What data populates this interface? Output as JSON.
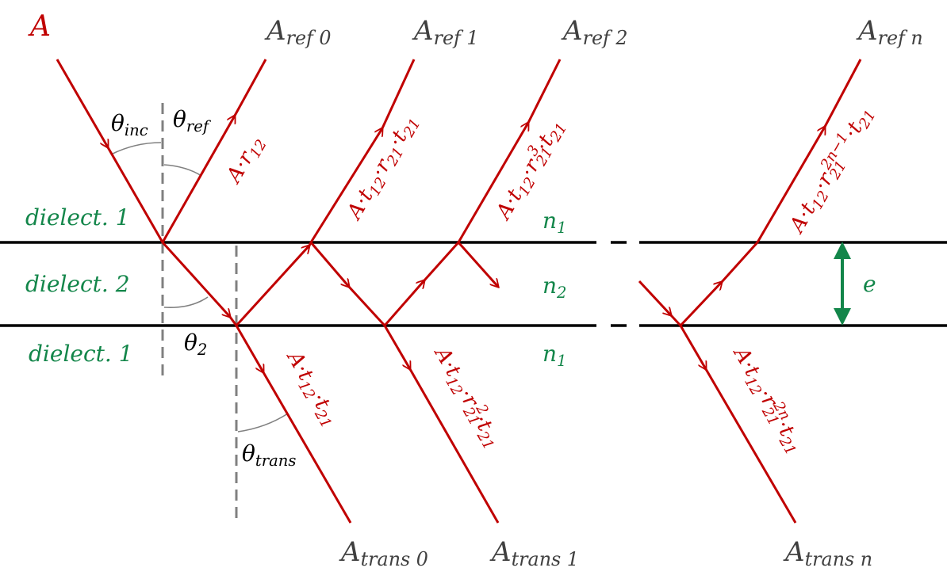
{
  "colors": {
    "ray": "#c00000",
    "interface": "#000000",
    "normal": "#808080",
    "medium": "#13864a",
    "output": "#404040"
  },
  "incident": {
    "label": "A"
  },
  "reflected": [
    {
      "base": "A",
      "sub": "ref 0",
      "coef": "A·r",
      "coef_sub": "12"
    },
    {
      "base": "A",
      "sub": "ref 1",
      "coef": "A·t",
      "s1": "12",
      "m": "·r",
      "s2": "21",
      "m2": "·t",
      "s3": "21"
    },
    {
      "base": "A",
      "sub": "ref 2",
      "coef": "A·t",
      "s1": "12",
      "m": "·r",
      "s2": "21",
      "sup": "3",
      "m2": "·t",
      "s3": "21"
    },
    {
      "base": "A",
      "sub": "ref n",
      "coef": "A·t",
      "s1": "12",
      "m": "·r",
      "s2": "21",
      "sup": "2n−1",
      "m2": "·t",
      "s3": "21"
    }
  ],
  "transmitted": [
    {
      "base": "A",
      "sub": "trans 0",
      "coef": "A·t",
      "s1": "12",
      "m": "·t",
      "s2": "21"
    },
    {
      "base": "A",
      "sub": "trans 1",
      "coef": "A·t",
      "s1": "12",
      "m": "·r",
      "s2": "21",
      "sup": "2",
      "m2": "·t",
      "s3": "21"
    },
    {
      "base": "A",
      "sub": "trans n",
      "coef": "A·t",
      "s1": "12",
      "m": "·r",
      "s2": "21",
      "sup": "2n",
      "m2": "·t",
      "s3": "21"
    }
  ],
  "angles": {
    "theta": "θ",
    "inc": "inc",
    "ref": "ref",
    "two": "2",
    "trans": "trans"
  },
  "media": {
    "top": "dielect. 1",
    "middle": "dielect. 2",
    "bottom": "dielect. 1",
    "n": "n",
    "n1": "1",
    "n2": "2",
    "thickness": "e"
  }
}
